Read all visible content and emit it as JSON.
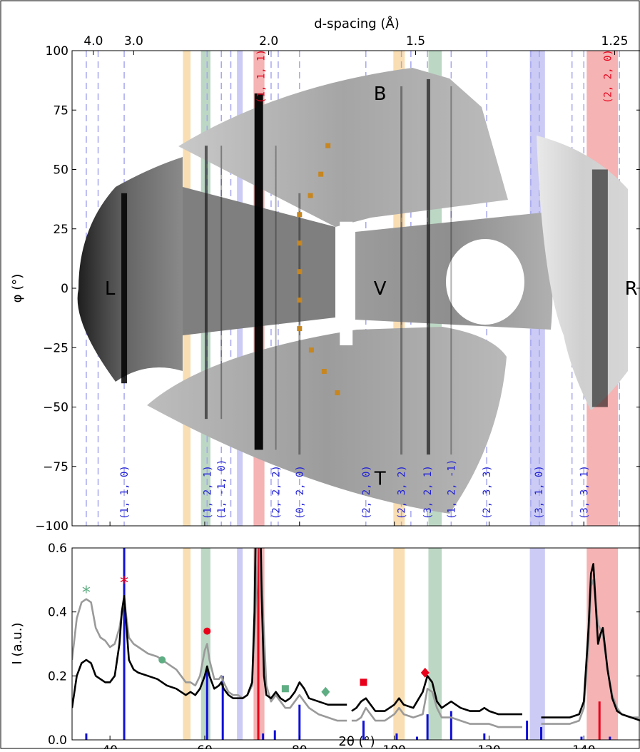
{
  "chart_data": [
    {
      "type": "heatmap",
      "description_panel": "2D diffraction image map",
      "xlabel": "",
      "ylabel": "φ (°)",
      "top_axis_label": "d-spacing (Å)",
      "top_axis_ticks": [
        "4.0",
        "3.0",
        "2.0",
        "1.5",
        "1.25"
      ],
      "ylim": [
        -100,
        100
      ],
      "yticks": [
        100,
        75,
        50,
        25,
        0,
        -25,
        -50,
        -75,
        -100
      ],
      "ytick_labels": [
        "100",
        "75",
        "50",
        "25",
        "0",
        "−25",
        "−50",
        "−75",
        "−100"
      ],
      "region_labels": [
        "B",
        "L",
        "V",
        "R",
        "T"
      ],
      "hkl_labels": [
        {
          "text": "(1, 1, 0)",
          "x": 43.0,
          "color": "#1f1fd6"
        },
        {
          "text": "(1, 2, 1)",
          "x": 60.5,
          "color": "#1f1fd6"
        },
        {
          "text": "(1, -1, 0)",
          "x": 63.5,
          "color": "#1f1fd6"
        },
        {
          "text": "(2, 2, 2)",
          "x": 75.0,
          "color": "#1f1fd6"
        },
        {
          "text": "(0, 2, 0)",
          "x": 80.0,
          "color": "#1f1fd6"
        },
        {
          "text": "(2, 2, 0)",
          "x": 94.0,
          "color": "#1f1fd6"
        },
        {
          "text": "(2, 3, 2)",
          "x": 101.5,
          "color": "#1f1fd6"
        },
        {
          "text": "(3, 2, 1)",
          "x": 107.0,
          "color": "#1f1fd6"
        },
        {
          "text": "(1, 2, -1)",
          "x": 112.0,
          "color": "#1f1fd6"
        },
        {
          "text": "(2, 3, 3)",
          "x": 119.5,
          "color": "#1f1fd6"
        },
        {
          "text": "(3, 1, 0)",
          "x": 130.5,
          "color": "#1f1fd6"
        },
        {
          "text": "(3, 3, 1)",
          "x": 140.0,
          "color": "#1f1fd6"
        },
        {
          "text": "(1, 1, 1)",
          "x": 71.8,
          "color": "#e8001a"
        },
        {
          "text": "(2, 2, 0)",
          "x": 145.0,
          "color": "#e8001a"
        }
      ]
    },
    {
      "type": "line",
      "xlabel": "2θ (°)",
      "ylabel": "I (a.u.)",
      "xlim": [
        32,
        152
      ],
      "ylim": [
        0,
        0.6
      ],
      "xticks": [
        40,
        60,
        80,
        100,
        120,
        140
      ],
      "yticks": [
        0.0,
        0.2,
        0.4,
        0.6
      ],
      "ytick_labels": [
        "0.0",
        "0.2",
        "0.4",
        "0.6"
      ],
      "series": [
        {
          "color": "#9a9a9a",
          "x": [
            32,
            33,
            34,
            35,
            36,
            37,
            38,
            39,
            40,
            41,
            42,
            43,
            44,
            45,
            46,
            48,
            50,
            52,
            54,
            55,
            56,
            57,
            58,
            59,
            60,
            60.5,
            61,
            62,
            63,
            63.5,
            64,
            65,
            66,
            67,
            68,
            69,
            70,
            71,
            71.5,
            72,
            73,
            74,
            75,
            76,
            77,
            78,
            79,
            80,
            81,
            82,
            84,
            86,
            88,
            90
          ],
          "y": [
            0.25,
            0.38,
            0.43,
            0.44,
            0.43,
            0.35,
            0.32,
            0.31,
            0.29,
            0.3,
            0.35,
            0.44,
            0.32,
            0.3,
            0.29,
            0.27,
            0.26,
            0.24,
            0.22,
            0.2,
            0.18,
            0.18,
            0.17,
            0.2,
            0.28,
            0.3,
            0.25,
            0.19,
            0.19,
            0.2,
            0.18,
            0.15,
            0.14,
            0.14,
            0.13,
            0.14,
            0.17,
            0.5,
            0.9,
            0.5,
            0.17,
            0.12,
            0.14,
            0.12,
            0.1,
            0.1,
            0.12,
            0.14,
            0.12,
            0.1,
            0.08,
            0.07,
            0.06,
            0.06
          ]
        },
        {
          "color": "#9a9a9a",
          "x": [
            91,
            92,
            93,
            94,
            95,
            96,
            97,
            98,
            100,
            101,
            102,
            104,
            106,
            107,
            108,
            109,
            110,
            112,
            114,
            116,
            118,
            120,
            122,
            124,
            127
          ],
          "y": [
            0.06,
            0.06,
            0.07,
            0.1,
            0.08,
            0.06,
            0.06,
            0.06,
            0.08,
            0.1,
            0.08,
            0.07,
            0.08,
            0.16,
            0.15,
            0.1,
            0.07,
            0.07,
            0.06,
            0.05,
            0.05,
            0.05,
            0.04,
            0.04,
            0.04
          ]
        },
        {
          "color": "#9a9a9a",
          "x": [
            131,
            133,
            135,
            137,
            139,
            140,
            141,
            141.5,
            142,
            143,
            144,
            145,
            146,
            147,
            148,
            150,
            152
          ],
          "y": [
            0.05,
            0.05,
            0.05,
            0.05,
            0.06,
            0.1,
            0.3,
            0.48,
            0.5,
            0.36,
            0.33,
            0.22,
            0.14,
            0.1,
            0.08,
            0.07,
            0.07
          ]
        },
        {
          "color": "#000000",
          "x": [
            32,
            33,
            34,
            35,
            36,
            37,
            38,
            39,
            40,
            41,
            42,
            42.5,
            43,
            43.5,
            44,
            45,
            46,
            48,
            50,
            52,
            54,
            55,
            56,
            57,
            58,
            59,
            60,
            60.5,
            61,
            62,
            63,
            63.5,
            64,
            65,
            66,
            67,
            68,
            69,
            70,
            70.5,
            71,
            71.5,
            72,
            72.5,
            73,
            74,
            75,
            76,
            77,
            78,
            79,
            80,
            81,
            82,
            84,
            86,
            88,
            90
          ],
          "y": [
            0.1,
            0.2,
            0.24,
            0.25,
            0.24,
            0.2,
            0.19,
            0.18,
            0.18,
            0.2,
            0.3,
            0.4,
            0.45,
            0.35,
            0.25,
            0.22,
            0.21,
            0.2,
            0.19,
            0.17,
            0.16,
            0.15,
            0.14,
            0.15,
            0.14,
            0.16,
            0.2,
            0.23,
            0.2,
            0.16,
            0.17,
            0.18,
            0.16,
            0.14,
            0.13,
            0.13,
            0.13,
            0.14,
            0.18,
            0.4,
            0.9,
            0.9,
            0.45,
            0.2,
            0.14,
            0.13,
            0.15,
            0.13,
            0.12,
            0.13,
            0.15,
            0.18,
            0.16,
            0.13,
            0.12,
            0.11,
            0.11,
            0.11
          ]
        },
        {
          "color": "#000000",
          "x": [
            91,
            92,
            93,
            94,
            95,
            96,
            97,
            98,
            100,
            101,
            102,
            104,
            106,
            107,
            108,
            109,
            110,
            112,
            114,
            116,
            118,
            119,
            120,
            122,
            124,
            127
          ],
          "y": [
            0.09,
            0.1,
            0.12,
            0.13,
            0.11,
            0.09,
            0.09,
            0.09,
            0.11,
            0.13,
            0.11,
            0.1,
            0.15,
            0.2,
            0.18,
            0.12,
            0.1,
            0.12,
            0.1,
            0.09,
            0.09,
            0.1,
            0.09,
            0.08,
            0.08,
            0.08
          ]
        },
        {
          "color": "#000000",
          "x": [
            131,
            133,
            135,
            137,
            139,
            140,
            141,
            141.5,
            142,
            143,
            143.5,
            144,
            145,
            146,
            147,
            148,
            150,
            152
          ],
          "y": [
            0.07,
            0.07,
            0.07,
            0.07,
            0.08,
            0.12,
            0.35,
            0.52,
            0.55,
            0.3,
            0.33,
            0.35,
            0.22,
            0.13,
            0.09,
            0.08,
            0.07,
            0.06
          ]
        }
      ],
      "reference_sticks_blue": [
        {
          "x": 35.0,
          "y": 0.02
        },
        {
          "x": 43.0,
          "y": 0.6
        },
        {
          "x": 60.5,
          "y": 0.22
        },
        {
          "x": 63.8,
          "y": 0.2
        },
        {
          "x": 72.3,
          "y": 0.02
        },
        {
          "x": 74.8,
          "y": 0.03
        },
        {
          "x": 80.0,
          "y": 0.11
        },
        {
          "x": 93.5,
          "y": 0.06
        },
        {
          "x": 100.5,
          "y": 0.02
        },
        {
          "x": 104.8,
          "y": 0.01
        },
        {
          "x": 107.0,
          "y": 0.08
        },
        {
          "x": 112.0,
          "y": 0.09
        },
        {
          "x": 119.0,
          "y": 0.02
        },
        {
          "x": 128.0,
          "y": 0.06
        },
        {
          "x": 131.0,
          "y": 0.04
        },
        {
          "x": 139.5,
          "y": 0.01
        },
        {
          "x": 145.5,
          "y": 0.01
        }
      ],
      "reference_sticks_red": [
        {
          "x": 71.3,
          "y": 0.6
        },
        {
          "x": 143.3,
          "y": 0.12
        }
      ],
      "markers": [
        {
          "shape": "asterisk",
          "color": "#5fae83",
          "x": 35.0,
          "y": 0.47
        },
        {
          "shape": "asterisk",
          "color": "#e8001a",
          "x": 43.0,
          "y": 0.5
        },
        {
          "shape": "circle",
          "color": "#5fae83",
          "x": 51.0,
          "y": 0.25
        },
        {
          "shape": "circle",
          "color": "#e8001a",
          "x": 60.5,
          "y": 0.34
        },
        {
          "shape": "square",
          "color": "#5fae83",
          "x": 77.0,
          "y": 0.16
        },
        {
          "shape": "diamond",
          "color": "#5fae83",
          "x": 85.5,
          "y": 0.15
        },
        {
          "shape": "square",
          "color": "#e8001a",
          "x": 93.5,
          "y": 0.18
        },
        {
          "shape": "diamond",
          "color": "#e8001a",
          "x": 106.5,
          "y": 0.21
        }
      ]
    }
  ],
  "bands": [
    {
      "x0": 55.4,
      "x1": 57.0,
      "color": "#f7d39a"
    },
    {
      "x0": 59.2,
      "x1": 61.2,
      "color": "#a7c9b1"
    },
    {
      "x0": 66.8,
      "x1": 68.0,
      "color": "#b9b9f2"
    },
    {
      "x0": 70.3,
      "x1": 72.6,
      "color": "#f29a9a"
    },
    {
      "x0": 99.8,
      "x1": 102.2,
      "color": "#f7d39a"
    },
    {
      "x0": 107.2,
      "x1": 110.0,
      "color": "#a7c9b1"
    },
    {
      "x0": 128.6,
      "x1": 131.8,
      "color": "#b9b9f2"
    },
    {
      "x0": 140.6,
      "x1": 147.2,
      "color": "#f29a9a"
    }
  ],
  "dashed_lines_x": [
    35.0,
    37.5,
    43.0,
    60.5,
    63.5,
    65.5,
    74.0,
    75.5,
    80.0,
    94.0,
    101.5,
    103.5,
    107.0,
    112.0,
    119.5,
    128.8,
    130.6,
    137.5,
    140.0,
    147.5
  ],
  "colors": {
    "dashed": "#a6a6ee",
    "blue_label": "#1f1fd6",
    "red": "#e8001a",
    "marker_green": "#5fae83",
    "orange_dots": "#c7861f"
  }
}
